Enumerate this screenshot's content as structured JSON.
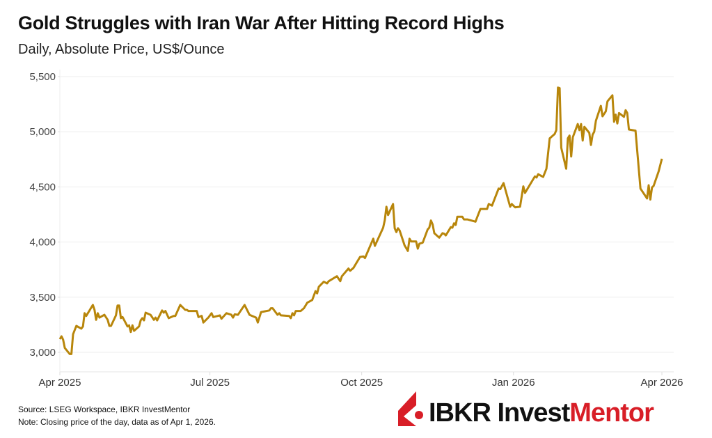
{
  "title": "Gold Struggles with Iran War After Hitting Record Highs",
  "subtitle": "Daily, Absolute Price, US$/Ounce",
  "footer": {
    "source": "Source: LSEG Workspace, IBKR InvestMentor",
    "note": "Note: Closing price of the day, data as of Apr 1, 2026."
  },
  "logo": {
    "text_black": "IBKR Invest",
    "text_red": "Mentor",
    "brand_red": "#d81e27"
  },
  "chart_data": {
    "type": "line",
    "title": "Gold Struggles with Iran War After Hitting Record Highs",
    "subtitle": "Daily, Absolute Price, US$/Ounce",
    "xlabel": "",
    "ylabel": "",
    "xlim": [
      "2025-04-01",
      "2026-04-01"
    ],
    "ylim": [
      2800,
      5600
    ],
    "yticks": [
      3000,
      3500,
      4000,
      4500,
      5000,
      5500
    ],
    "ytick_labels": [
      "3,000",
      "3,500",
      "4,000",
      "4,500",
      "5,000",
      "5,500"
    ],
    "xticks": [
      "2025-04-01",
      "2025-07-01",
      "2025-10-01",
      "2026-01-01",
      "2026-04-01"
    ],
    "xtick_labels": [
      "Apr 2025",
      "Jul 2025",
      "Oct 2025",
      "Jan 2026",
      "Apr 2026"
    ],
    "grid": "horizontal",
    "line_color": "#b8860b",
    "series": [
      {
        "points": [
          [
            "2025-04-01",
            3120
          ],
          [
            "2025-04-02",
            3145
          ],
          [
            "2025-04-03",
            3115
          ],
          [
            "2025-04-04",
            3040
          ],
          [
            "2025-04-07",
            2985
          ],
          [
            "2025-04-08",
            2985
          ],
          [
            "2025-04-09",
            3165
          ],
          [
            "2025-04-11",
            3240
          ],
          [
            "2025-04-14",
            3215
          ],
          [
            "2025-04-15",
            3235
          ],
          [
            "2025-04-16",
            3355
          ],
          [
            "2025-04-17",
            3330
          ],
          [
            "2025-04-21",
            3430
          ],
          [
            "2025-04-22",
            3385
          ],
          [
            "2025-04-23",
            3295
          ],
          [
            "2025-04-24",
            3355
          ],
          [
            "2025-04-25",
            3315
          ],
          [
            "2025-04-28",
            3340
          ],
          [
            "2025-04-30",
            3295
          ],
          [
            "2025-05-01",
            3240
          ],
          [
            "2025-05-02",
            3240
          ],
          [
            "2025-05-05",
            3335
          ],
          [
            "2025-05-06",
            3425
          ],
          [
            "2025-05-07",
            3425
          ],
          [
            "2025-05-08",
            3310
          ],
          [
            "2025-05-09",
            3320
          ],
          [
            "2025-05-12",
            3235
          ],
          [
            "2025-05-13",
            3245
          ],
          [
            "2025-05-14",
            3185
          ],
          [
            "2025-05-15",
            3245
          ],
          [
            "2025-05-16",
            3195
          ],
          [
            "2025-05-19",
            3235
          ],
          [
            "2025-05-20",
            3290
          ],
          [
            "2025-05-21",
            3310
          ],
          [
            "2025-05-22",
            3290
          ],
          [
            "2025-05-23",
            3360
          ],
          [
            "2025-05-26",
            3340
          ],
          [
            "2025-05-28",
            3295
          ],
          [
            "2025-05-29",
            3315
          ],
          [
            "2025-05-30",
            3290
          ],
          [
            "2025-06-02",
            3380
          ],
          [
            "2025-06-03",
            3360
          ],
          [
            "2025-06-04",
            3375
          ],
          [
            "2025-06-06",
            3310
          ],
          [
            "2025-06-09",
            3330
          ],
          [
            "2025-06-10",
            3330
          ],
          [
            "2025-06-13",
            3430
          ],
          [
            "2025-06-16",
            3385
          ],
          [
            "2025-06-17",
            3385
          ],
          [
            "2025-06-18",
            3375
          ],
          [
            "2025-06-23",
            3375
          ],
          [
            "2025-06-24",
            3320
          ],
          [
            "2025-06-26",
            3330
          ],
          [
            "2025-06-27",
            3270
          ],
          [
            "2025-06-30",
            3315
          ],
          [
            "2025-07-02",
            3355
          ],
          [
            "2025-07-03",
            3320
          ],
          [
            "2025-07-07",
            3335
          ],
          [
            "2025-07-08",
            3305
          ],
          [
            "2025-07-11",
            3355
          ],
          [
            "2025-07-14",
            3340
          ],
          [
            "2025-07-15",
            3315
          ],
          [
            "2025-07-16",
            3345
          ],
          [
            "2025-07-18",
            3340
          ],
          [
            "2025-07-22",
            3430
          ],
          [
            "2025-07-25",
            3340
          ],
          [
            "2025-07-29",
            3315
          ],
          [
            "2025-07-30",
            3270
          ],
          [
            "2025-08-01",
            3365
          ],
          [
            "2025-08-06",
            3380
          ],
          [
            "2025-08-07",
            3400
          ],
          [
            "2025-08-08",
            3400
          ],
          [
            "2025-08-11",
            3340
          ],
          [
            "2025-08-12",
            3355
          ],
          [
            "2025-08-13",
            3335
          ],
          [
            "2025-08-18",
            3330
          ],
          [
            "2025-08-19",
            3310
          ],
          [
            "2025-08-20",
            3355
          ],
          [
            "2025-08-21",
            3335
          ],
          [
            "2025-08-22",
            3375
          ],
          [
            "2025-08-25",
            3375
          ],
          [
            "2025-08-27",
            3400
          ],
          [
            "2025-08-29",
            3450
          ],
          [
            "2025-09-01",
            3475
          ],
          [
            "2025-09-03",
            3555
          ],
          [
            "2025-09-04",
            3535
          ],
          [
            "2025-09-05",
            3595
          ],
          [
            "2025-09-08",
            3640
          ],
          [
            "2025-09-10",
            3625
          ],
          [
            "2025-09-11",
            3645
          ],
          [
            "2025-09-16",
            3690
          ],
          [
            "2025-09-18",
            3645
          ],
          [
            "2025-09-19",
            3690
          ],
          [
            "2025-09-23",
            3760
          ],
          [
            "2025-09-24",
            3740
          ],
          [
            "2025-09-26",
            3765
          ],
          [
            "2025-09-30",
            3865
          ],
          [
            "2025-10-02",
            3870
          ],
          [
            "2025-10-03",
            3855
          ],
          [
            "2025-10-08",
            4030
          ],
          [
            "2025-10-09",
            3965
          ],
          [
            "2025-10-14",
            4130
          ],
          [
            "2025-10-15",
            4200
          ],
          [
            "2025-10-16",
            4320
          ],
          [
            "2025-10-17",
            4245
          ],
          [
            "2025-10-20",
            4345
          ],
          [
            "2025-10-21",
            4125
          ],
          [
            "2025-10-22",
            4090
          ],
          [
            "2025-10-23",
            4125
          ],
          [
            "2025-10-24",
            4105
          ],
          [
            "2025-10-27",
            3970
          ],
          [
            "2025-10-29",
            3920
          ],
          [
            "2025-10-30",
            4030
          ],
          [
            "2025-10-31",
            4005
          ],
          [
            "2025-11-03",
            4005
          ],
          [
            "2025-11-04",
            3940
          ],
          [
            "2025-11-05",
            3985
          ],
          [
            "2025-11-07",
            3995
          ],
          [
            "2025-11-10",
            4115
          ],
          [
            "2025-11-11",
            4130
          ],
          [
            "2025-11-12",
            4195
          ],
          [
            "2025-11-13",
            4160
          ],
          [
            "2025-11-14",
            4080
          ],
          [
            "2025-11-17",
            4040
          ],
          [
            "2025-11-19",
            4080
          ],
          [
            "2025-11-20",
            4075
          ],
          [
            "2025-11-21",
            4060
          ],
          [
            "2025-11-24",
            4135
          ],
          [
            "2025-11-25",
            4130
          ],
          [
            "2025-11-26",
            4170
          ],
          [
            "2025-11-27",
            4155
          ],
          [
            "2025-11-28",
            4230
          ],
          [
            "2025-12-01",
            4230
          ],
          [
            "2025-12-02",
            4205
          ],
          [
            "2025-12-04",
            4205
          ],
          [
            "2025-12-09",
            4185
          ],
          [
            "2025-12-10",
            4225
          ],
          [
            "2025-12-12",
            4300
          ],
          [
            "2025-12-16",
            4300
          ],
          [
            "2025-12-17",
            4345
          ],
          [
            "2025-12-19",
            4330
          ],
          [
            "2025-12-23",
            4485
          ],
          [
            "2025-12-24",
            4480
          ],
          [
            "2025-12-26",
            4535
          ],
          [
            "2025-12-30",
            4320
          ],
          [
            "2025-12-31",
            4345
          ],
          [
            "2026-01-02",
            4315
          ],
          [
            "2026-01-05",
            4320
          ],
          [
            "2026-01-07",
            4505
          ],
          [
            "2026-01-08",
            4445
          ],
          [
            "2026-01-14",
            4595
          ],
          [
            "2026-01-15",
            4585
          ],
          [
            "2026-01-16",
            4615
          ],
          [
            "2026-01-19",
            4590
          ],
          [
            "2026-01-21",
            4665
          ],
          [
            "2026-01-23",
            4940
          ],
          [
            "2026-01-26",
            4980
          ],
          [
            "2026-01-27",
            5015
          ],
          [
            "2026-01-28",
            5400
          ],
          [
            "2026-01-29",
            5395
          ],
          [
            "2026-01-30",
            4855
          ],
          [
            "2026-02-02",
            4665
          ],
          [
            "2026-02-03",
            4940
          ],
          [
            "2026-02-04",
            4965
          ],
          [
            "2026-02-05",
            4775
          ],
          [
            "2026-02-06",
            4950
          ],
          [
            "2026-02-09",
            5070
          ],
          [
            "2026-02-10",
            5015
          ],
          [
            "2026-02-11",
            5070
          ],
          [
            "2026-02-12",
            4920
          ],
          [
            "2026-02-13",
            5045
          ],
          [
            "2026-02-16",
            4990
          ],
          [
            "2026-02-17",
            4880
          ],
          [
            "2026-02-18",
            4975
          ],
          [
            "2026-02-19",
            5000
          ],
          [
            "2026-02-20",
            5100
          ],
          [
            "2026-02-23",
            5235
          ],
          [
            "2026-02-24",
            5140
          ],
          [
            "2026-02-26",
            5185
          ],
          [
            "2026-02-27",
            5275
          ],
          [
            "2026-03-02",
            5330
          ],
          [
            "2026-03-03",
            5090
          ],
          [
            "2026-03-04",
            5155
          ],
          [
            "2026-03-05",
            5075
          ],
          [
            "2026-03-06",
            5170
          ],
          [
            "2026-03-09",
            5135
          ],
          [
            "2026-03-10",
            5195
          ],
          [
            "2026-03-11",
            5170
          ],
          [
            "2026-03-12",
            5020
          ],
          [
            "2026-03-16",
            5010
          ],
          [
            "2026-03-19",
            4485
          ],
          [
            "2026-03-23",
            4395
          ],
          [
            "2026-03-24",
            4515
          ],
          [
            "2026-03-25",
            4385
          ],
          [
            "2026-03-26",
            4495
          ],
          [
            "2026-03-27",
            4510
          ],
          [
            "2026-03-30",
            4640
          ],
          [
            "2026-04-01",
            4755
          ]
        ]
      }
    ]
  }
}
